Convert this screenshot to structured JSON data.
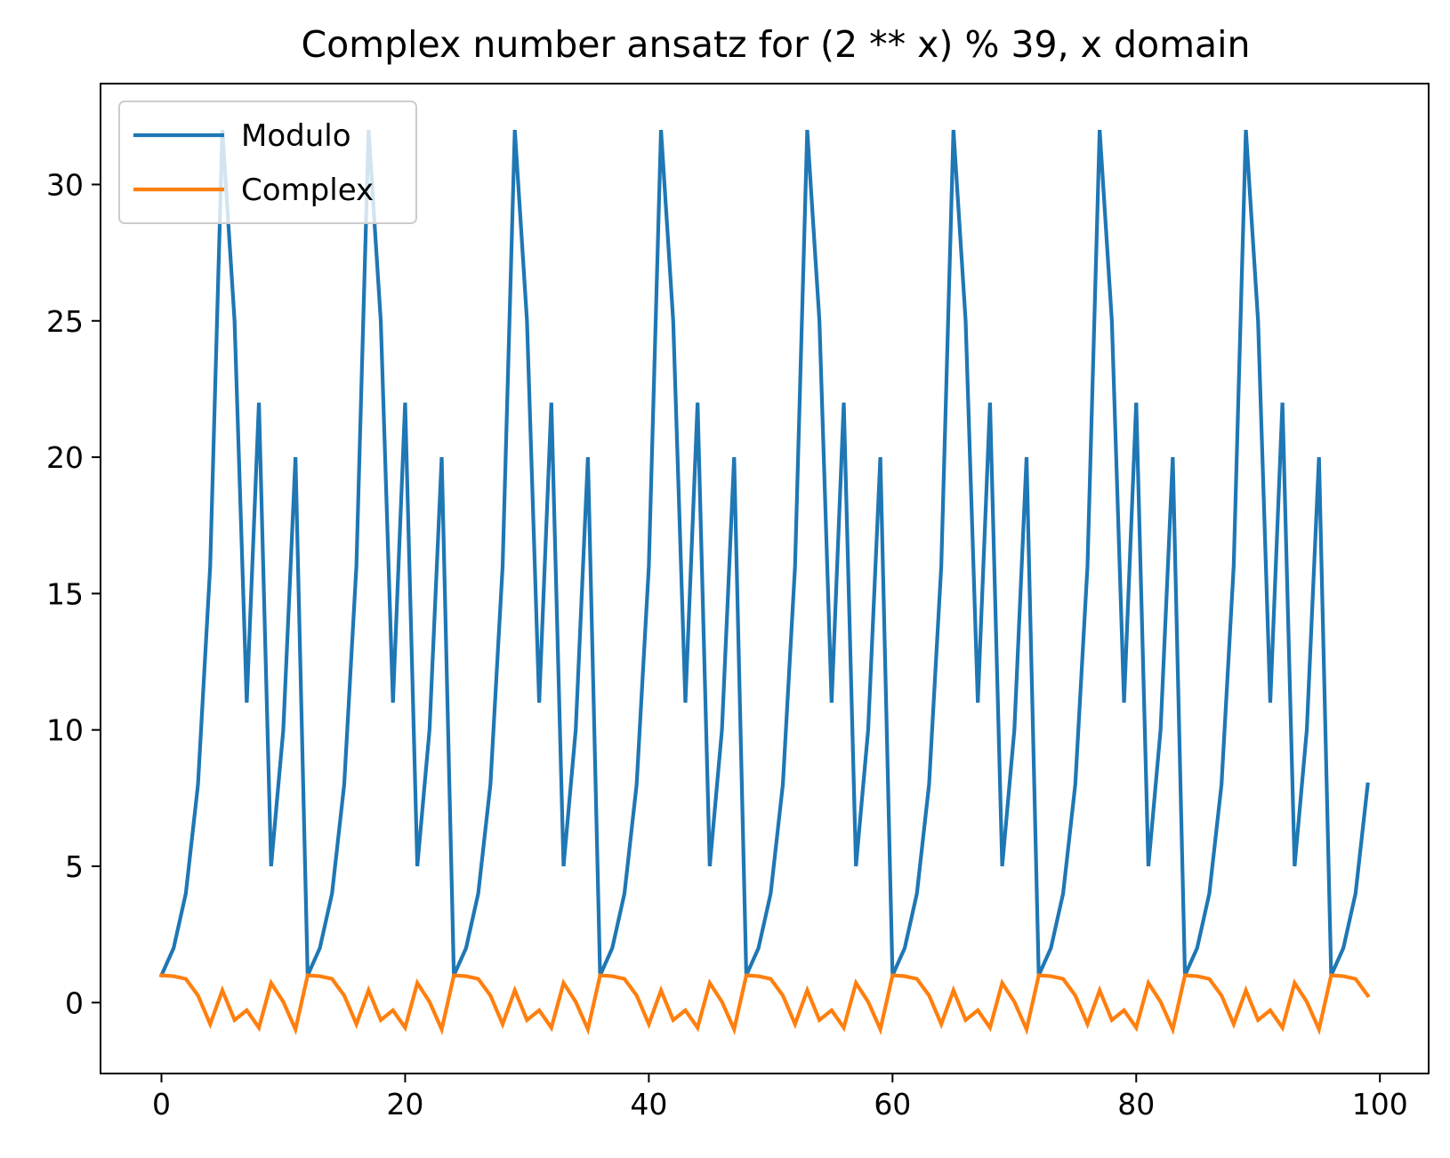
{
  "chart_data": {
    "type": "line",
    "title": "Complex number ansatz for (2 ** x) % 39, x domain",
    "xlabel": "",
    "ylabel": "",
    "xlim": [
      -5,
      104
    ],
    "ylim": [
      -2.6,
      33.7
    ],
    "xticks": [
      0,
      20,
      40,
      60,
      80,
      100
    ],
    "yticks": [
      0,
      5,
      10,
      15,
      20,
      25,
      30
    ],
    "grid": false,
    "legend_position": "upper-left",
    "x": {
      "start": 0,
      "end": 99,
      "step": 1
    },
    "series": [
      {
        "name": "Modulo",
        "color": "#1f77b4",
        "values": [
          1,
          2,
          4,
          8,
          16,
          32,
          25,
          11,
          22,
          5,
          10,
          20,
          1,
          2,
          4,
          8,
          16,
          32,
          25,
          11,
          22,
          5,
          10,
          20,
          1,
          2,
          4,
          8,
          16,
          32,
          25,
          11,
          22,
          5,
          10,
          20,
          1,
          2,
          4,
          8,
          16,
          32,
          25,
          11,
          22,
          5,
          10,
          20,
          1,
          2,
          4,
          8,
          16,
          32,
          25,
          11,
          22,
          5,
          10,
          20,
          1,
          2,
          4,
          8,
          16,
          32,
          25,
          11,
          22,
          5,
          10,
          20,
          1,
          2,
          4,
          8,
          16,
          32,
          25,
          11,
          22,
          5,
          10,
          20,
          1,
          2,
          4,
          8,
          16,
          32,
          25,
          11,
          22,
          5,
          10,
          20,
          1,
          2,
          4,
          8
        ]
      },
      {
        "name": "Complex",
        "color": "#ff7f0e",
        "values": [
          1.0,
          0.97,
          0.87,
          0.26,
          -0.79,
          0.45,
          -0.64,
          -0.28,
          -0.92,
          0.72,
          0.03,
          -0.98,
          1.0,
          0.97,
          0.87,
          0.26,
          -0.79,
          0.45,
          -0.64,
          -0.28,
          -0.92,
          0.72,
          0.03,
          -0.98,
          1.0,
          0.97,
          0.87,
          0.26,
          -0.79,
          0.45,
          -0.64,
          -0.28,
          -0.92,
          0.72,
          0.03,
          -0.98,
          1.0,
          0.97,
          0.87,
          0.26,
          -0.79,
          0.45,
          -0.64,
          -0.28,
          -0.92,
          0.72,
          0.03,
          -0.98,
          1.0,
          0.97,
          0.87,
          0.26,
          -0.79,
          0.45,
          -0.64,
          -0.28,
          -0.92,
          0.72,
          0.03,
          -0.98,
          1.0,
          0.97,
          0.87,
          0.26,
          -0.79,
          0.45,
          -0.64,
          -0.28,
          -0.92,
          0.72,
          0.03,
          -0.98,
          1.0,
          0.97,
          0.87,
          0.26,
          -0.79,
          0.45,
          -0.64,
          -0.28,
          -0.92,
          0.72,
          0.03,
          -0.98,
          1.0,
          0.97,
          0.87,
          0.26,
          -0.79,
          0.45,
          -0.64,
          -0.28,
          -0.92,
          0.72,
          0.03,
          -0.98,
          1.0,
          0.97,
          0.87,
          0.26
        ]
      }
    ]
  }
}
